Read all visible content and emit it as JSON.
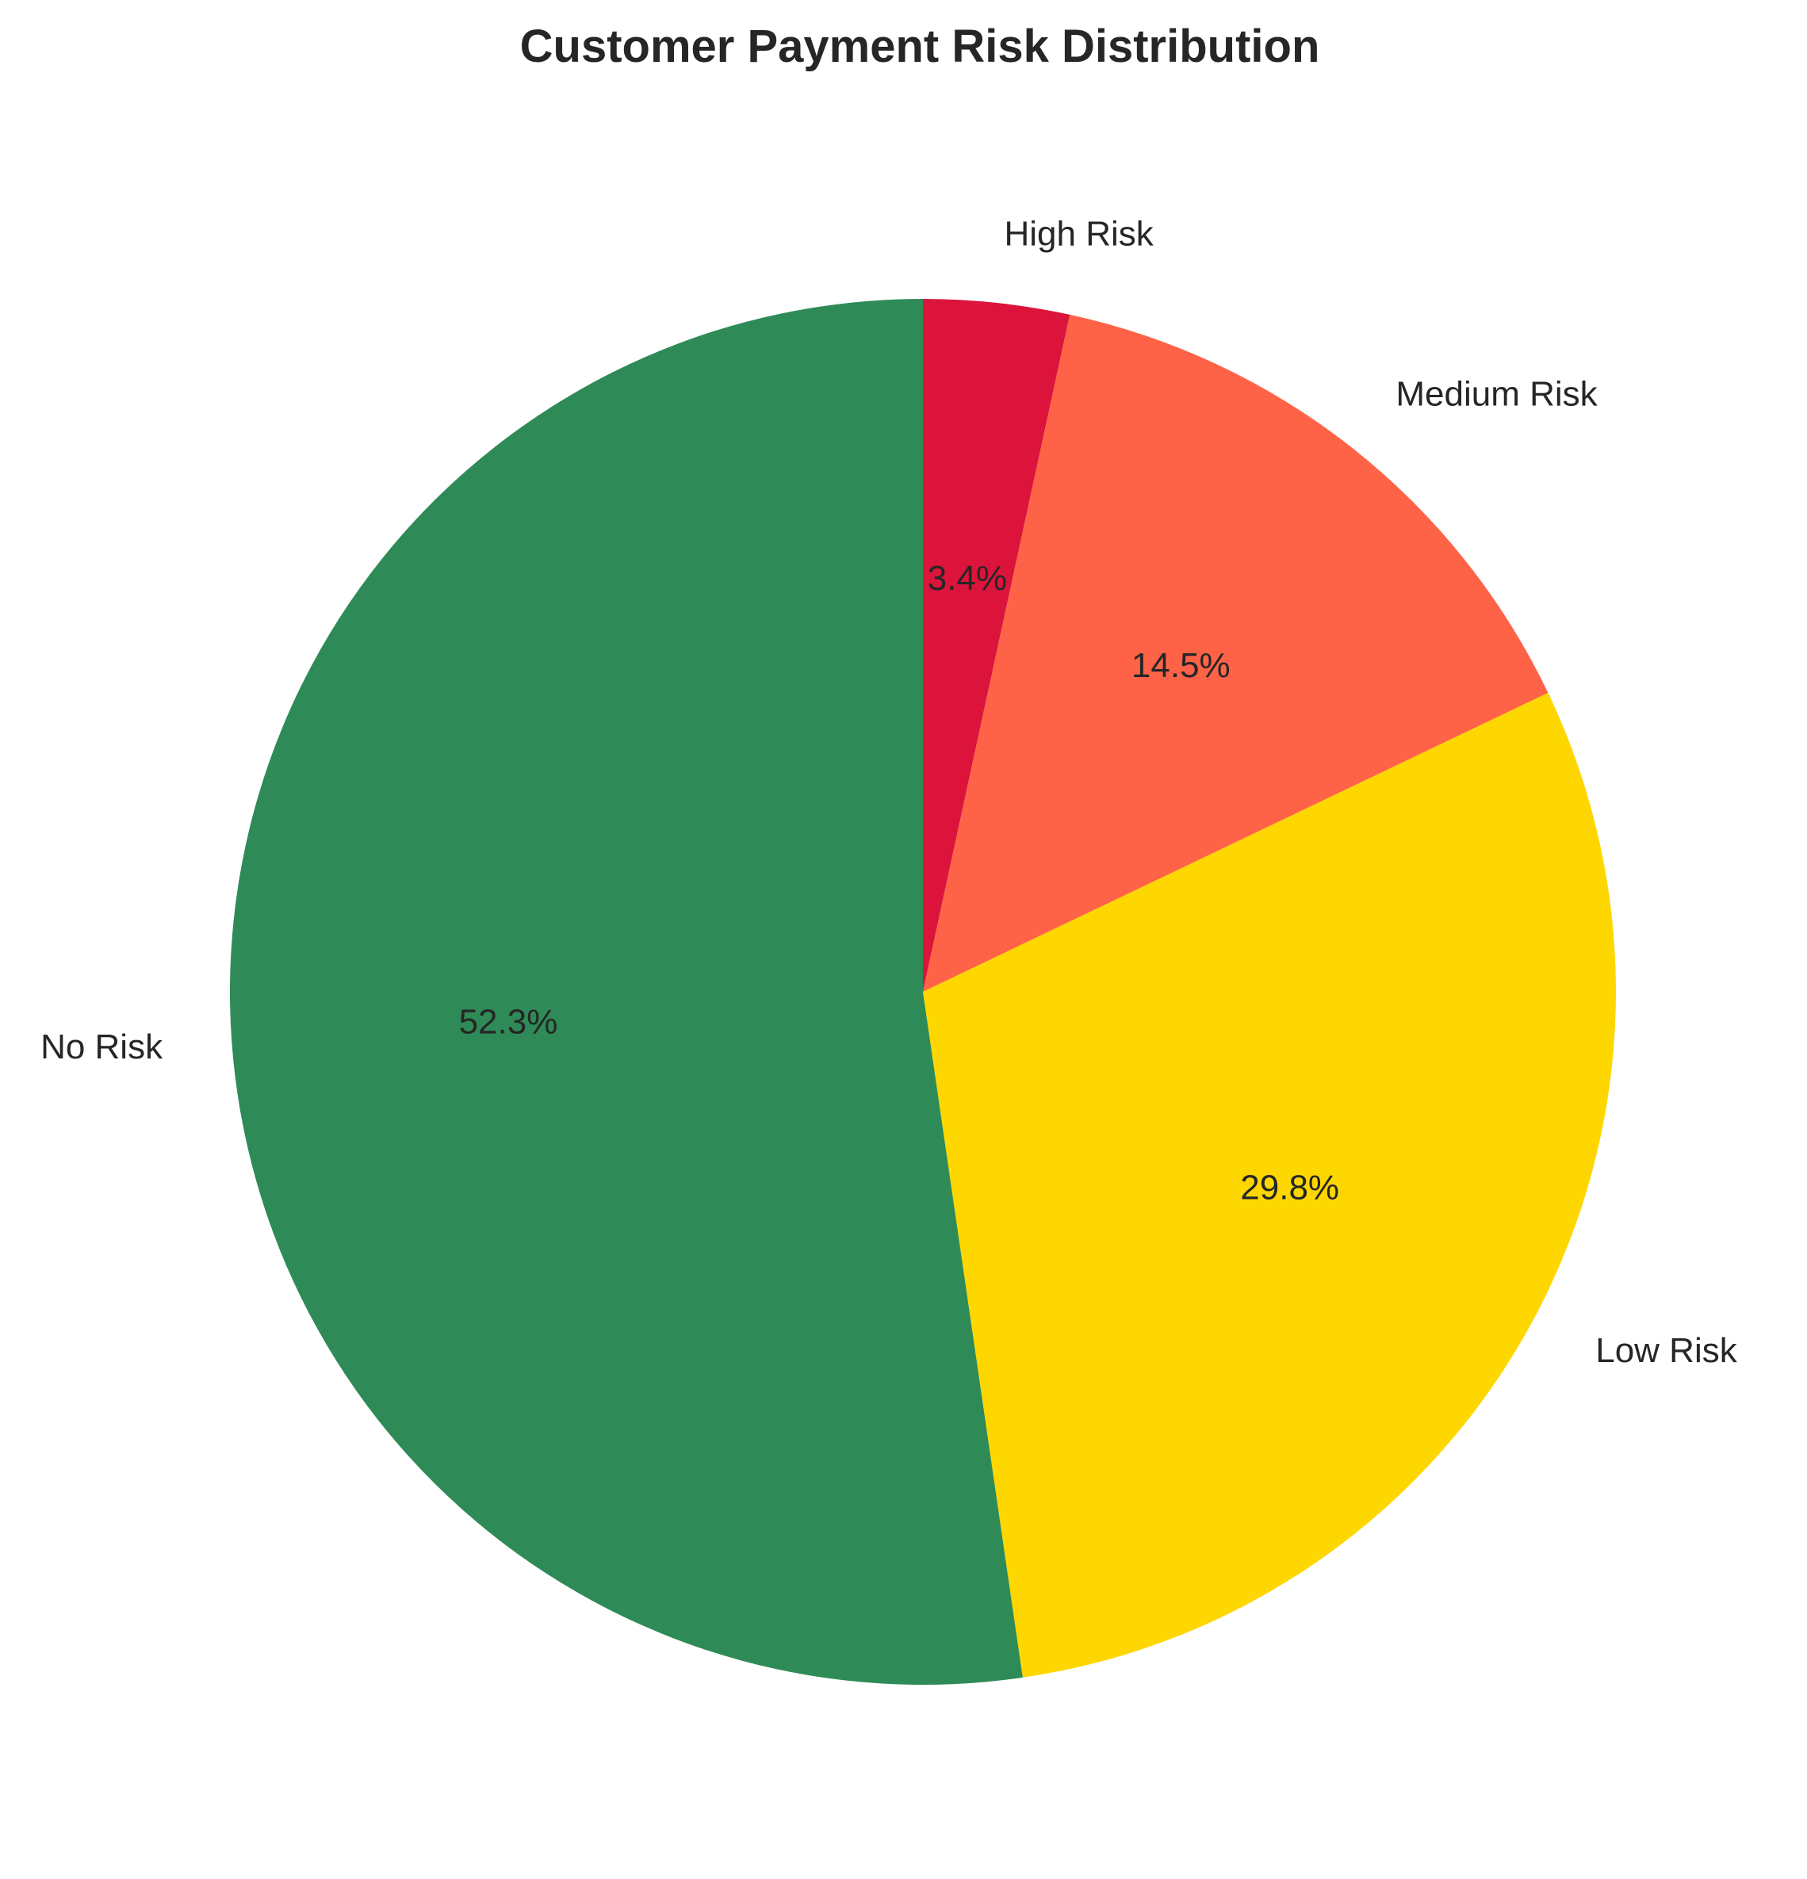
{
  "chart_data": {
    "type": "pie",
    "title": "Customer Payment Risk Distribution",
    "start_angle_deg": 90,
    "direction": "clockwise",
    "slices": [
      {
        "label": "High Risk",
        "value": 3.4,
        "pct_label": "3.4%",
        "color": "#DC143C"
      },
      {
        "label": "Medium Risk",
        "value": 14.5,
        "pct_label": "14.5%",
        "color": "#FF6347"
      },
      {
        "label": "Low Risk",
        "value": 29.8,
        "pct_label": "29.8%",
        "color": "#FFD700"
      },
      {
        "label": "No Risk",
        "value": 52.3,
        "pct_label": "52.3%",
        "color": "#2E8B57"
      }
    ]
  }
}
